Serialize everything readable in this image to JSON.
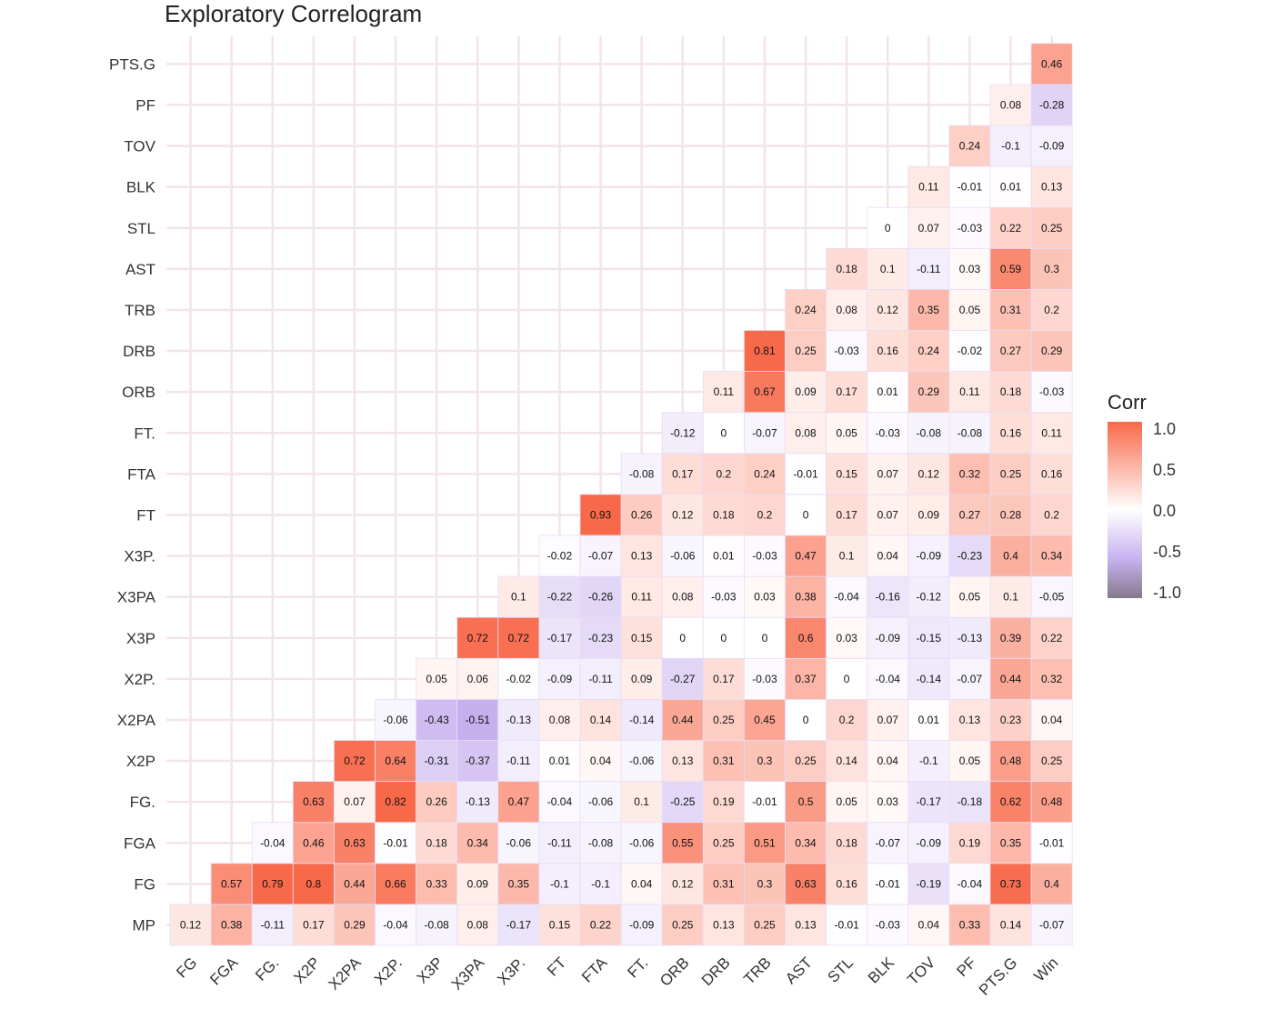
{
  "title": "Exploratory Correlogram",
  "chart_data": {
    "type": "heatmap",
    "title": "Exploratory Correlogram",
    "x_labels": [
      "FG",
      "FGA",
      "FG.",
      "X2P",
      "X2PA",
      "X2P.",
      "X3P",
      "X3PA",
      "X3P.",
      "FT",
      "FTA",
      "FT.",
      "ORB",
      "DRB",
      "TRB",
      "AST",
      "STL",
      "BLK",
      "TOV",
      "PF",
      "PTS.G",
      "Win"
    ],
    "y_labels": [
      "MP",
      "FG",
      "FGA",
      "FG.",
      "X2P",
      "X2PA",
      "X2P.",
      "X3P",
      "X3PA",
      "X3P.",
      "FT",
      "FTA",
      "FT.",
      "ORB",
      "DRB",
      "TRB",
      "AST",
      "STL",
      "BLK",
      "TOV",
      "PF",
      "PTS.G"
    ],
    "values": [
      [
        0.12,
        0.38,
        -0.11,
        0.17,
        0.29,
        -0.04,
        -0.08,
        0.08,
        -0.17,
        0.15,
        0.22,
        -0.09,
        0.25,
        0.13,
        0.25,
        0.13,
        -0.01,
        -0.03,
        0.04,
        0.33,
        0.14,
        -0.07
      ],
      [
        null,
        0.57,
        0.79,
        0.8,
        0.44,
        0.66,
        0.33,
        0.09,
        0.35,
        -0.1,
        -0.1,
        0.04,
        0.12,
        0.31,
        0.3,
        0.63,
        0.16,
        -0.01,
        -0.19,
        -0.04,
        0.73,
        0.4
      ],
      [
        null,
        null,
        -0.04,
        0.46,
        0.63,
        -0.01,
        0.18,
        0.34,
        -0.06,
        -0.11,
        -0.08,
        -0.06,
        0.55,
        0.25,
        0.51,
        0.34,
        0.18,
        -0.07,
        -0.09,
        0.19,
        0.35,
        -0.01
      ],
      [
        null,
        null,
        null,
        0.63,
        0.07,
        0.82,
        0.26,
        -0.13,
        0.47,
        -0.04,
        -0.06,
        0.1,
        -0.25,
        0.19,
        -0.01,
        0.5,
        0.05,
        0.03,
        -0.17,
        -0.18,
        0.62,
        0.48
      ],
      [
        null,
        null,
        null,
        null,
        0.72,
        0.64,
        -0.31,
        -0.37,
        -0.11,
        0.01,
        0.04,
        -0.06,
        0.13,
        0.31,
        0.3,
        0.25,
        0.14,
        0.04,
        -0.1,
        0.05,
        0.48,
        0.25
      ],
      [
        null,
        null,
        null,
        null,
        null,
        -0.06,
        -0.43,
        -0.51,
        -0.13,
        0.08,
        0.14,
        -0.14,
        0.44,
        0.25,
        0.45,
        0,
        0.2,
        0.07,
        0.01,
        0.13,
        0.23,
        0.04
      ],
      [
        null,
        null,
        null,
        null,
        null,
        null,
        0.05,
        0.06,
        -0.02,
        -0.09,
        -0.11,
        0.09,
        -0.27,
        0.17,
        -0.03,
        0.37,
        0,
        -0.04,
        -0.14,
        -0.07,
        0.44,
        0.32
      ],
      [
        null,
        null,
        null,
        null,
        null,
        null,
        null,
        0.72,
        0.72,
        -0.17,
        -0.23,
        0.15,
        0,
        0,
        0,
        0.6,
        0.03,
        -0.09,
        -0.15,
        -0.13,
        0.39,
        0.22
      ],
      [
        null,
        null,
        null,
        null,
        null,
        null,
        null,
        null,
        0.1,
        -0.22,
        -0.26,
        0.11,
        0.08,
        -0.03,
        0.03,
        0.38,
        -0.04,
        -0.16,
        -0.12,
        0.05,
        0.1,
        -0.05
      ],
      [
        null,
        null,
        null,
        null,
        null,
        null,
        null,
        null,
        null,
        -0.02,
        -0.07,
        0.13,
        -0.06,
        0.01,
        -0.03,
        0.47,
        0.1,
        0.04,
        -0.09,
        -0.23,
        0.4,
        0.34
      ],
      [
        null,
        null,
        null,
        null,
        null,
        null,
        null,
        null,
        null,
        null,
        0.93,
        0.26,
        0.12,
        0.18,
        0.2,
        0,
        0.17,
        0.07,
        0.09,
        0.27,
        0.28,
        0.2
      ],
      [
        null,
        null,
        null,
        null,
        null,
        null,
        null,
        null,
        null,
        null,
        null,
        -0.08,
        0.17,
        0.2,
        0.24,
        -0.01,
        0.15,
        0.07,
        0.12,
        0.32,
        0.25,
        0.16
      ],
      [
        null,
        null,
        null,
        null,
        null,
        null,
        null,
        null,
        null,
        null,
        null,
        null,
        -0.12,
        0,
        -0.07,
        0.08,
        0.05,
        -0.03,
        -0.08,
        -0.08,
        0.16,
        0.11
      ],
      [
        null,
        null,
        null,
        null,
        null,
        null,
        null,
        null,
        null,
        null,
        null,
        null,
        null,
        0.11,
        0.67,
        0.09,
        0.17,
        0.01,
        0.29,
        0.11,
        0.18,
        -0.03
      ],
      [
        null,
        null,
        null,
        null,
        null,
        null,
        null,
        null,
        null,
        null,
        null,
        null,
        null,
        null,
        0.81,
        0.25,
        -0.03,
        0.16,
        0.24,
        -0.02,
        0.27,
        0.29
      ],
      [
        null,
        null,
        null,
        null,
        null,
        null,
        null,
        null,
        null,
        null,
        null,
        null,
        null,
        null,
        null,
        0.24,
        0.08,
        0.12,
        0.35,
        0.05,
        0.31,
        0.2
      ],
      [
        null,
        null,
        null,
        null,
        null,
        null,
        null,
        null,
        null,
        null,
        null,
        null,
        null,
        null,
        null,
        null,
        0.18,
        0.1,
        -0.11,
        0.03,
        0.59,
        0.3
      ],
      [
        null,
        null,
        null,
        null,
        null,
        null,
        null,
        null,
        null,
        null,
        null,
        null,
        null,
        null,
        null,
        null,
        null,
        0,
        0.07,
        -0.03,
        0.22,
        0.25
      ],
      [
        null,
        null,
        null,
        null,
        null,
        null,
        null,
        null,
        null,
        null,
        null,
        null,
        null,
        null,
        null,
        null,
        null,
        null,
        0.11,
        -0.01,
        0.01,
        0.13
      ],
      [
        null,
        null,
        null,
        null,
        null,
        null,
        null,
        null,
        null,
        null,
        null,
        null,
        null,
        null,
        null,
        null,
        null,
        null,
        null,
        0.24,
        -0.1,
        -0.09
      ],
      [
        null,
        null,
        null,
        null,
        null,
        null,
        null,
        null,
        null,
        null,
        null,
        null,
        null,
        null,
        null,
        null,
        null,
        null,
        null,
        null,
        0.08,
        -0.28
      ],
      [
        null,
        null,
        null,
        null,
        null,
        null,
        null,
        null,
        null,
        null,
        null,
        null,
        null,
        null,
        null,
        null,
        null,
        null,
        null,
        null,
        null,
        0.46
      ]
    ],
    "legend": {
      "title": "Corr",
      "ticks": [
        "1.0",
        "0.5",
        "0.0",
        "-0.5",
        "-1.0"
      ],
      "range": [
        -1,
        1
      ],
      "placement": "right"
    },
    "colors": {
      "high": "#f8694a",
      "mid": "#ffffff",
      "low": "#c7b1ef",
      "min": "#857a8c",
      "grid": "#f3e4ea"
    },
    "grid": true
  }
}
